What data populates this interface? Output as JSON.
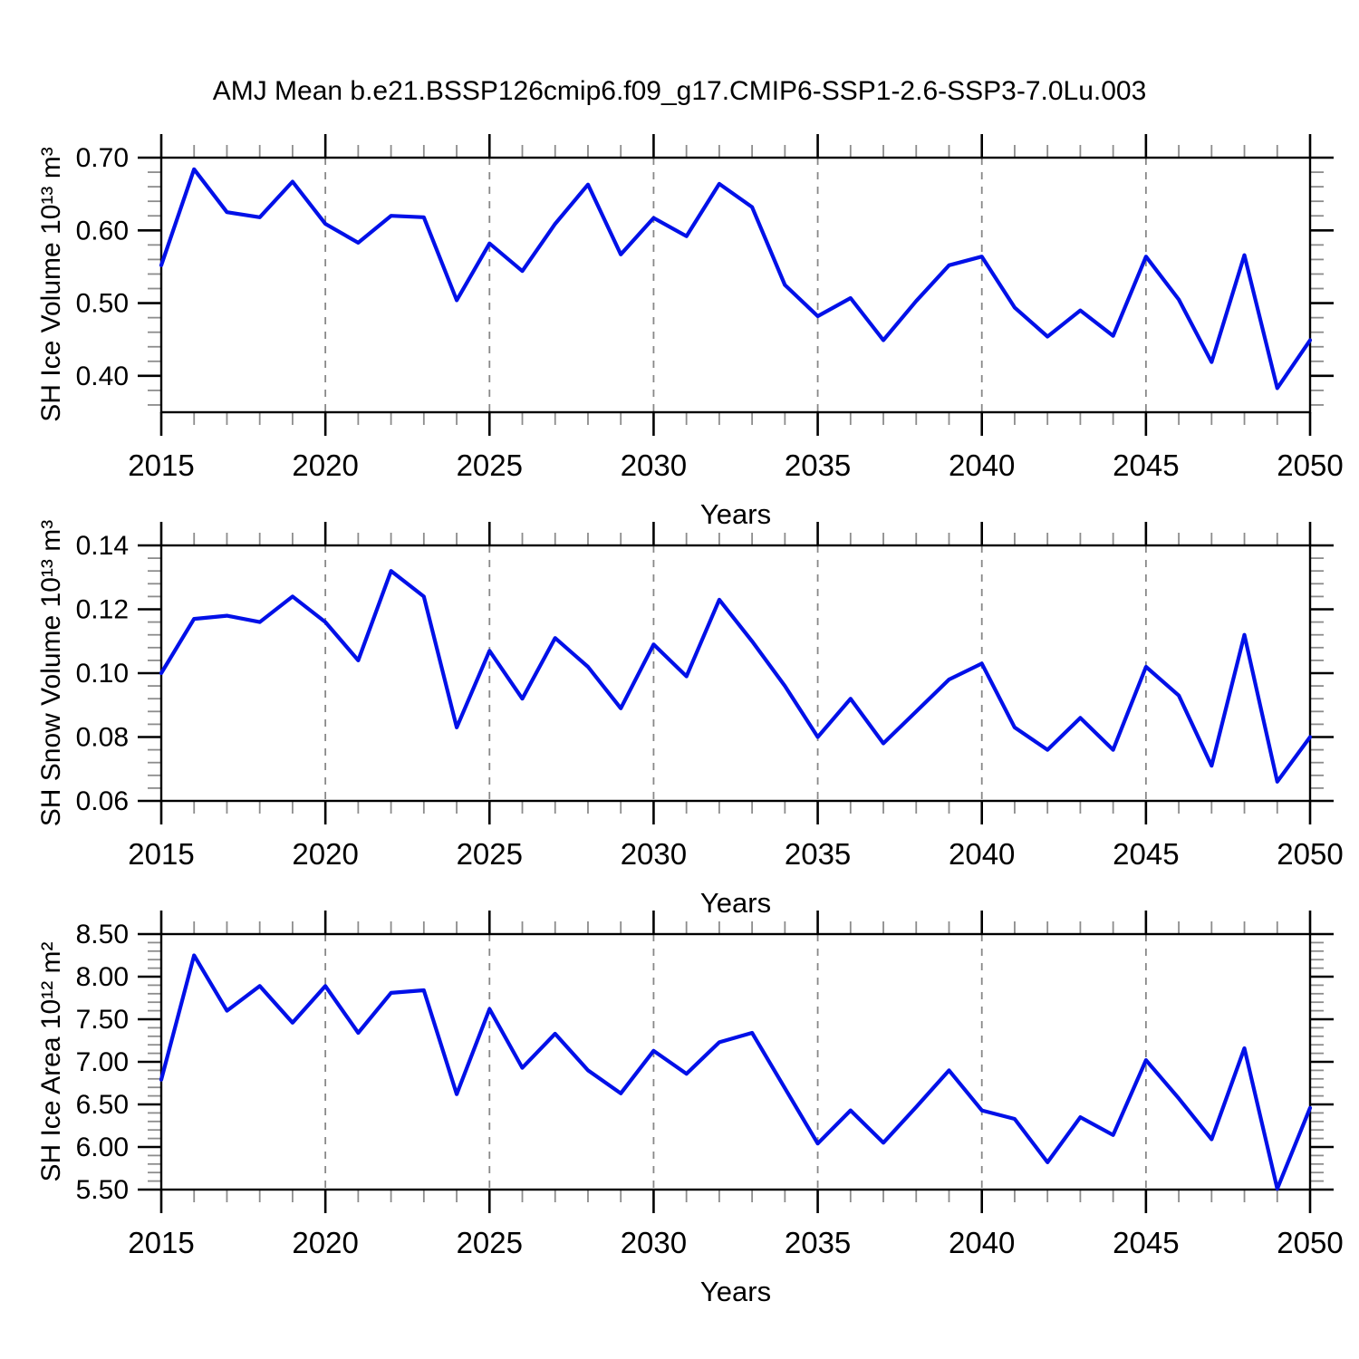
{
  "title": "AMJ Mean b.e21.BSSP126cmip6.f09_g17.CMIP6-SSP1-2.6-SSP3-7.0Lu.003",
  "colors": {
    "background": "#FFFFFF",
    "line": "#0010E8",
    "axis": "#000000",
    "minor_tick": "#8C8C8C",
    "grid": "#888888",
    "text": "#000000"
  },
  "chart_data": [
    {
      "type": "line",
      "ylabel": "SH Ice Volume 10¹³ m³",
      "xlabel": "Years",
      "x": [
        2015,
        2016,
        2017,
        2018,
        2019,
        2020,
        2021,
        2022,
        2023,
        2024,
        2025,
        2026,
        2027,
        2028,
        2029,
        2030,
        2031,
        2032,
        2033,
        2034,
        2035,
        2036,
        2037,
        2038,
        2039,
        2040,
        2041,
        2042,
        2043,
        2044,
        2045,
        2046,
        2047,
        2048,
        2049,
        2050
      ],
      "values": [
        0.552,
        0.684,
        0.625,
        0.618,
        0.667,
        0.609,
        0.583,
        0.62,
        0.618,
        0.504,
        0.582,
        0.544,
        0.609,
        0.663,
        0.567,
        0.617,
        0.592,
        0.664,
        0.632,
        0.525,
        0.482,
        0.507,
        0.449,
        0.503,
        0.552,
        0.564,
        0.494,
        0.454,
        0.49,
        0.455,
        0.564,
        0.505,
        0.419,
        0.566,
        0.383,
        0.449
      ],
      "xlim": [
        2015,
        2050
      ],
      "ylim": [
        0.35,
        0.7
      ],
      "xticks": [
        2015,
        2020,
        2025,
        2030,
        2035,
        2040,
        2045,
        2050
      ],
      "xtick_labels": [
        "2015",
        "2020",
        "2025",
        "2030",
        "2035",
        "2040",
        "2045",
        "2050"
      ],
      "xminor_step": 1,
      "yticks": [
        0.4,
        0.5,
        0.6,
        0.7
      ],
      "ytick_labels": [
        "0.40",
        "0.50",
        "0.60",
        "0.70"
      ],
      "yminor_step": 0.02,
      "grid_x": [
        2020,
        2025,
        2030,
        2035,
        2040,
        2045
      ],
      "grid_on": true,
      "legend": null
    },
    {
      "type": "line",
      "ylabel": "SH Snow Volume 10¹³ m³",
      "xlabel": "Years",
      "x": [
        2015,
        2016,
        2017,
        2018,
        2019,
        2020,
        2021,
        2022,
        2023,
        2024,
        2025,
        2026,
        2027,
        2028,
        2029,
        2030,
        2031,
        2032,
        2033,
        2034,
        2035,
        2036,
        2037,
        2038,
        2039,
        2040,
        2041,
        2042,
        2043,
        2044,
        2045,
        2046,
        2047,
        2048,
        2049,
        2050
      ],
      "values": [
        0.1,
        0.117,
        0.118,
        0.116,
        0.124,
        0.116,
        0.104,
        0.132,
        0.124,
        0.083,
        0.107,
        0.092,
        0.111,
        0.102,
        0.089,
        0.109,
        0.099,
        0.123,
        0.11,
        0.096,
        0.08,
        0.092,
        0.078,
        0.088,
        0.098,
        0.103,
        0.083,
        0.076,
        0.086,
        0.076,
        0.102,
        0.093,
        0.071,
        0.112,
        0.066,
        0.08
      ],
      "xlim": [
        2015,
        2050
      ],
      "ylim": [
        0.06,
        0.14
      ],
      "xticks": [
        2015,
        2020,
        2025,
        2030,
        2035,
        2040,
        2045,
        2050
      ],
      "xtick_labels": [
        "2015",
        "2020",
        "2025",
        "2030",
        "2035",
        "2040",
        "2045",
        "2050"
      ],
      "xminor_step": 1,
      "yticks": [
        0.06,
        0.08,
        0.1,
        0.12,
        0.14
      ],
      "ytick_labels": [
        "0.06",
        "0.08",
        "0.10",
        "0.12",
        "0.14"
      ],
      "yminor_step": 0.004,
      "grid_x": [
        2020,
        2025,
        2030,
        2035,
        2040,
        2045
      ],
      "grid_on": true,
      "legend": null
    },
    {
      "type": "line",
      "ylabel": "SH Ice Area 10¹² m²",
      "xlabel": "Years",
      "x": [
        2015,
        2016,
        2017,
        2018,
        2019,
        2020,
        2021,
        2022,
        2023,
        2024,
        2025,
        2026,
        2027,
        2028,
        2029,
        2030,
        2031,
        2032,
        2033,
        2034,
        2035,
        2036,
        2037,
        2038,
        2039,
        2040,
        2041,
        2042,
        2043,
        2044,
        2045,
        2046,
        2047,
        2048,
        2049,
        2050
      ],
      "values": [
        6.79,
        8.25,
        7.6,
        7.89,
        7.46,
        7.89,
        7.34,
        7.81,
        7.84,
        6.62,
        7.62,
        6.93,
        7.33,
        6.9,
        6.63,
        7.13,
        6.86,
        7.23,
        7.34,
        6.69,
        6.04,
        6.43,
        6.05,
        6.47,
        6.9,
        6.43,
        6.33,
        5.82,
        6.35,
        6.14,
        7.02,
        6.57,
        6.09,
        7.16,
        5.51,
        6.46
      ],
      "xlim": [
        2015,
        2050
      ],
      "ylim": [
        5.5,
        8.5
      ],
      "xticks": [
        2015,
        2020,
        2025,
        2030,
        2035,
        2040,
        2045,
        2050
      ],
      "xtick_labels": [
        "2015",
        "2020",
        "2025",
        "2030",
        "2035",
        "2040",
        "2045",
        "2050"
      ],
      "xminor_step": 1,
      "yticks": [
        5.5,
        6.0,
        6.5,
        7.0,
        7.5,
        8.0,
        8.5
      ],
      "ytick_labels": [
        "5.50",
        "6.00",
        "6.50",
        "7.00",
        "7.50",
        "8.00",
        "8.50"
      ],
      "yminor_step": 0.1,
      "grid_x": [
        2020,
        2025,
        2030,
        2035,
        2040,
        2045
      ],
      "grid_on": true,
      "legend": null
    }
  ]
}
